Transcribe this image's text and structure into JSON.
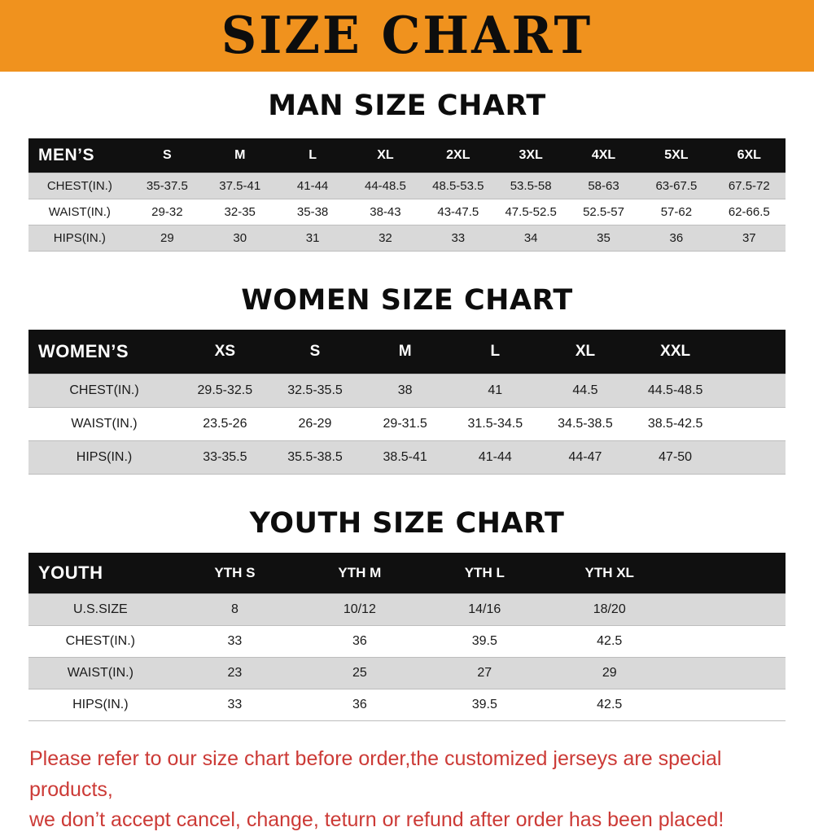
{
  "banner": {
    "title": "SIZE CHART"
  },
  "colors": {
    "banner_bg": "#F0921E",
    "header_row_bg": "#101010",
    "stripe_row_bg": "#D9D9D9",
    "notice_text": "#CC3A36"
  },
  "sections": [
    {
      "id": "men",
      "title": "MAN SIZE CHART",
      "header_label": "MEN’S",
      "columns": [
        "S",
        "M",
        "L",
        "XL",
        "2XL",
        "3XL",
        "4XL",
        "5XL",
        "6XL"
      ],
      "rows": [
        {
          "label": "CHEST(IN.)",
          "values": [
            "35-37.5",
            "37.5-41",
            "41-44",
            "44-48.5",
            "48.5-53.5",
            "53.5-58",
            "58-63",
            "63-67.5",
            "67.5-72"
          ]
        },
        {
          "label": "WAIST(IN.)",
          "values": [
            "29-32",
            "32-35",
            "35-38",
            "38-43",
            "43-47.5",
            "47.5-52.5",
            "52.5-57",
            "57-62",
            "62-66.5"
          ]
        },
        {
          "label": "HIPS(IN.)",
          "values": [
            "29",
            "30",
            "31",
            "32",
            "33",
            "34",
            "35",
            "36",
            "37"
          ]
        }
      ]
    },
    {
      "id": "women",
      "title": "WOMEN SIZE CHART",
      "header_label": "WOMEN’S",
      "columns": [
        "XS",
        "S",
        "M",
        "L",
        "XL",
        "XXL"
      ],
      "rows": [
        {
          "label": "CHEST(IN.)",
          "values": [
            "29.5-32.5",
            "32.5-35.5",
            "38",
            "41",
            "44.5",
            "44.5-48.5"
          ]
        },
        {
          "label": "WAIST(IN.)",
          "values": [
            "23.5-26",
            "26-29",
            "29-31.5",
            "31.5-34.5",
            "34.5-38.5",
            "38.5-42.5"
          ]
        },
        {
          "label": "HIPS(IN.)",
          "values": [
            "33-35.5",
            "35.5-38.5",
            "38.5-41",
            "41-44",
            "44-47",
            "47-50"
          ]
        }
      ]
    },
    {
      "id": "youth",
      "title": "YOUTH SIZE CHART",
      "header_label": "YOUTH",
      "columns": [
        "YTH S",
        "YTH M",
        "YTH L",
        "YTH XL"
      ],
      "rows": [
        {
          "label": "U.S.SIZE",
          "values": [
            "8",
            "10/12",
            "14/16",
            "18/20"
          ]
        },
        {
          "label": "CHEST(IN.)",
          "values": [
            "33",
            "36",
            "39.5",
            "42.5"
          ]
        },
        {
          "label": "WAIST(IN.)",
          "values": [
            "23",
            "25",
            "27",
            "29"
          ]
        },
        {
          "label": "HIPS(IN.)",
          "values": [
            "33",
            "36",
            "39.5",
            "42.5"
          ]
        }
      ]
    }
  ],
  "footer": {
    "lines": [
      "Please refer to our size chart before order,the customized jerseys are special products,",
      "we don’t accept cancel, change, teturn or refund after order has been placed!"
    ]
  }
}
